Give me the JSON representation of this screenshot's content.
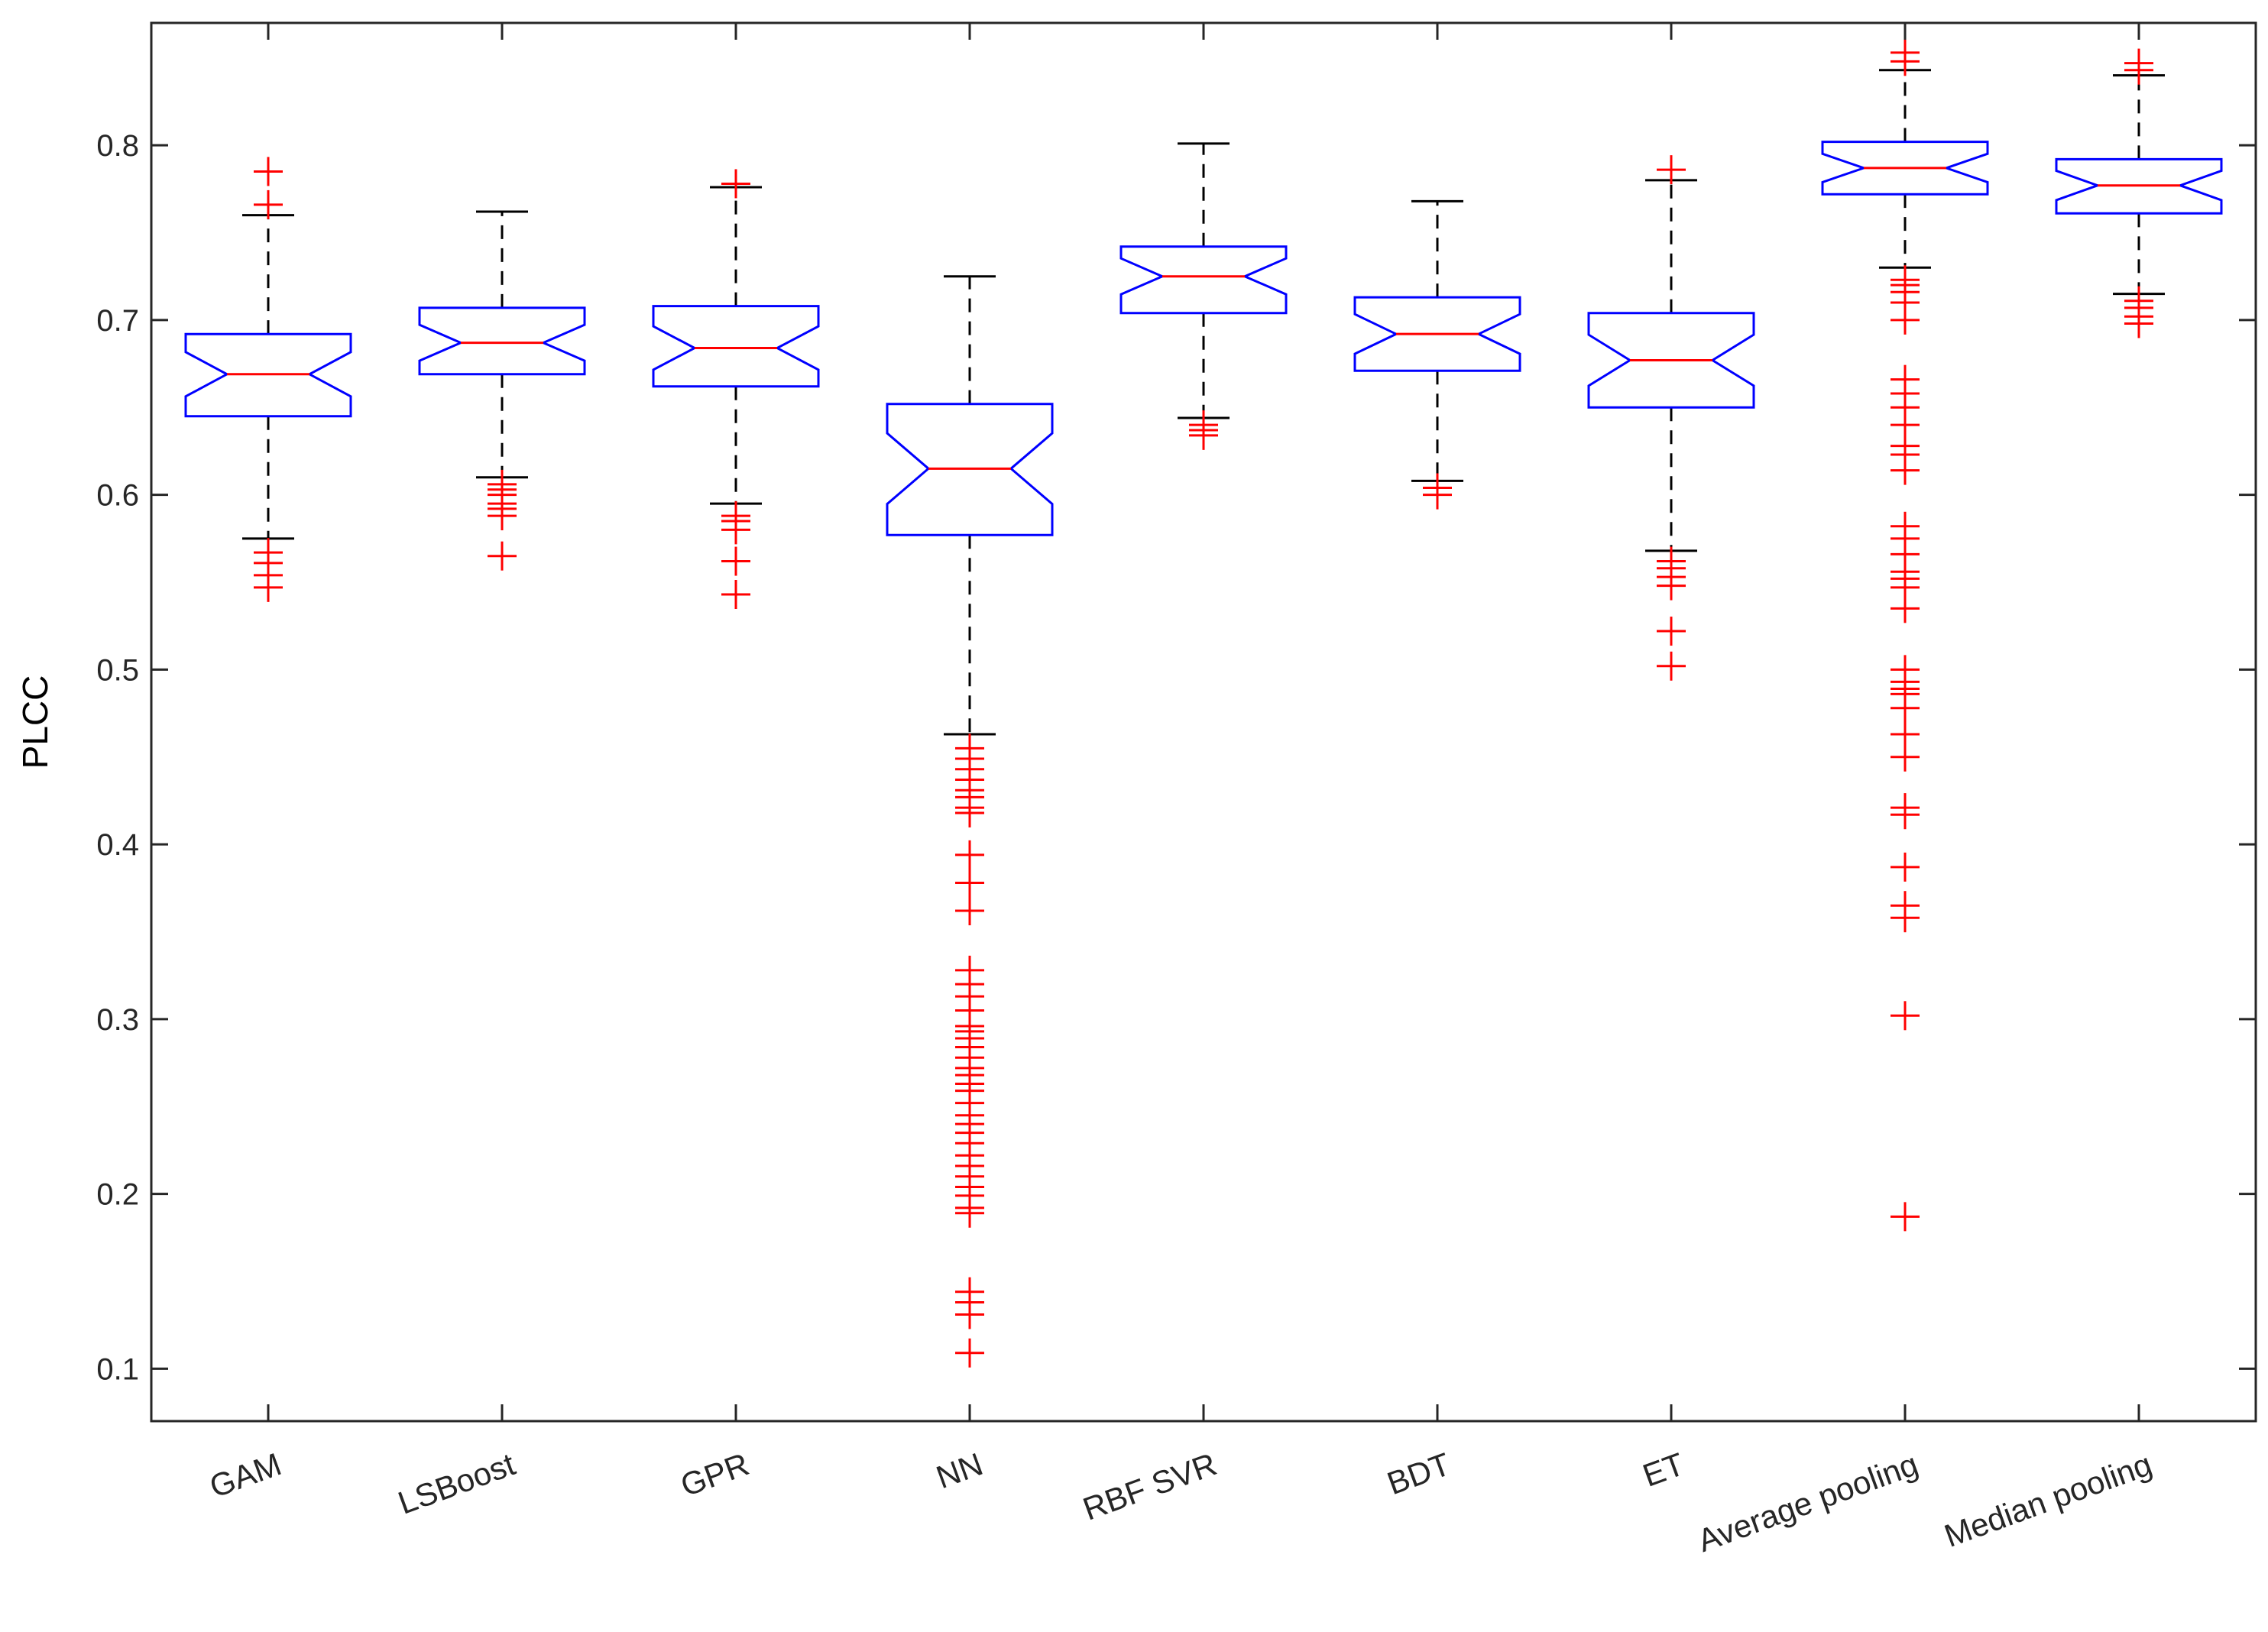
{
  "chart_data": {
    "type": "boxplot",
    "title": "",
    "xlabel": "",
    "ylabel": "PLCC",
    "ylim": [
      0.07,
      0.87
    ],
    "yticks": [
      0.1,
      0.2,
      0.3,
      0.4,
      0.5,
      0.6,
      0.7,
      0.8
    ],
    "notched": true,
    "grid": false,
    "legend": "none",
    "colors": {
      "box": "#0000ff",
      "median": "#ff0000",
      "whisker": "#000000",
      "outlier": "#ff0000"
    },
    "categories": [
      "GAM",
      "LSBoost",
      "GPR",
      "NN",
      "RBF SVR",
      "BDT",
      "ET",
      "Average pooling",
      "Median pooling"
    ],
    "boxes": [
      {
        "name": "GAM",
        "whisker_low": 0.575,
        "q1": 0.645,
        "median": 0.669,
        "q3": 0.692,
        "whisker_high": 0.76,
        "outliers": [
          0.785,
          0.766,
          0.567,
          0.561,
          0.554,
          0.547
        ]
      },
      {
        "name": "LSBoost",
        "whisker_low": 0.61,
        "q1": 0.669,
        "median": 0.687,
        "q3": 0.707,
        "whisker_high": 0.762,
        "outliers": [
          0.606,
          0.603,
          0.6,
          0.595,
          0.592,
          0.588,
          0.565
        ]
      },
      {
        "name": "GPR",
        "whisker_low": 0.595,
        "q1": 0.662,
        "median": 0.684,
        "q3": 0.708,
        "whisker_high": 0.776,
        "outliers": [
          0.778,
          0.588,
          0.585,
          0.58,
          0.562,
          0.543
        ]
      },
      {
        "name": "NN",
        "whisker_low": 0.463,
        "q1": 0.577,
        "median": 0.615,
        "q3": 0.652,
        "whisker_high": 0.725,
        "outliers": [
          0.455,
          0.449,
          0.443,
          0.437,
          0.431,
          0.427,
          0.421,
          0.418,
          0.394,
          0.378,
          0.362,
          0.328,
          0.32,
          0.313,
          0.305,
          0.296,
          0.293,
          0.289,
          0.284,
          0.278,
          0.272,
          0.268,
          0.263,
          0.259,
          0.252,
          0.245,
          0.24,
          0.235,
          0.229,
          0.222,
          0.216,
          0.21,
          0.204,
          0.199,
          0.192,
          0.189,
          0.144,
          0.138,
          0.131,
          0.109
        ]
      },
      {
        "name": "RBF SVR",
        "whisker_low": 0.644,
        "q1": 0.704,
        "median": 0.725,
        "q3": 0.742,
        "whisker_high": 0.801,
        "outliers": [
          0.64,
          0.637,
          0.634
        ]
      },
      {
        "name": "BDT",
        "whisker_low": 0.608,
        "q1": 0.671,
        "median": 0.692,
        "q3": 0.713,
        "whisker_high": 0.768,
        "outliers": [
          0.604,
          0.6
        ]
      },
      {
        "name": "ET",
        "whisker_low": 0.568,
        "q1": 0.65,
        "median": 0.677,
        "q3": 0.704,
        "whisker_high": 0.78,
        "outliers": [
          0.786,
          0.562,
          0.558,
          0.553,
          0.548,
          0.522,
          0.502
        ]
      },
      {
        "name": "Average pooling",
        "whisker_low": 0.73,
        "q1": 0.772,
        "median": 0.787,
        "q3": 0.802,
        "whisker_high": 0.843,
        "outliers": [
          0.853,
          0.848,
          0.723,
          0.72,
          0.716,
          0.71,
          0.7,
          0.666,
          0.658,
          0.65,
          0.64,
          0.628,
          0.623,
          0.614,
          0.582,
          0.575,
          0.566,
          0.556,
          0.552,
          0.547,
          0.535,
          0.5,
          0.493,
          0.489,
          0.486,
          0.478,
          0.463,
          0.45,
          0.421,
          0.417,
          0.387,
          0.365,
          0.358,
          0.302,
          0.187
        ]
      },
      {
        "name": "Median pooling",
        "whisker_low": 0.715,
        "q1": 0.761,
        "median": 0.777,
        "q3": 0.792,
        "whisker_high": 0.84,
        "outliers": [
          0.847,
          0.843,
          0.711,
          0.707,
          0.702,
          0.698
        ]
      }
    ]
  }
}
